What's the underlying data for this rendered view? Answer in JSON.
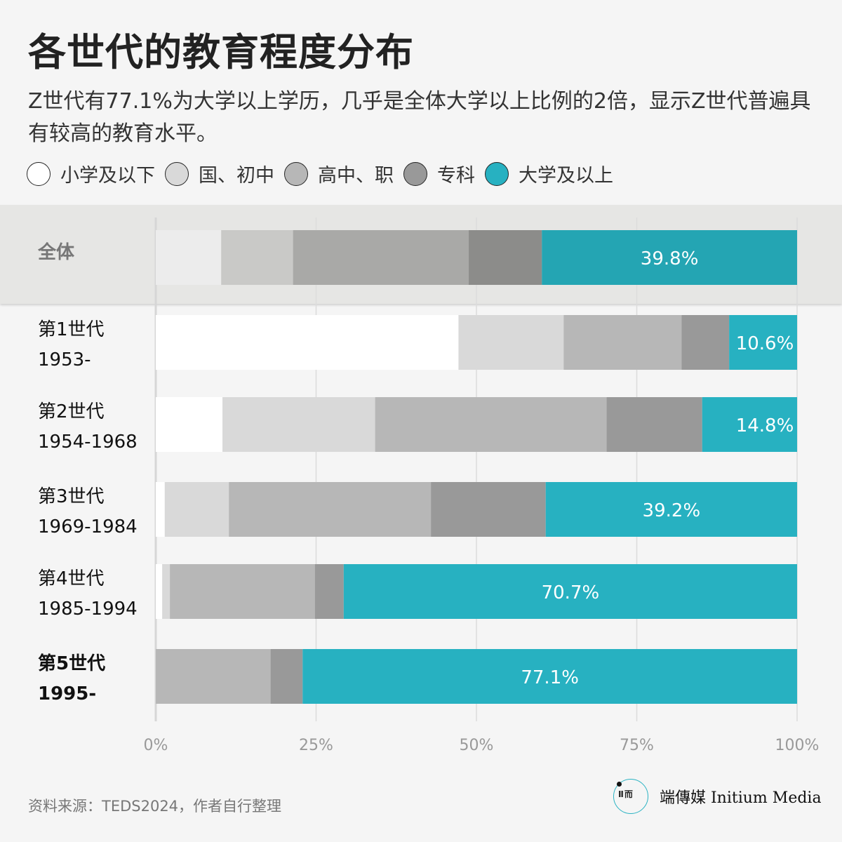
{
  "title": "各世代的教育程度分布",
  "subtitle": "Z世代有77.1%为大学以上学历，几乎是全体大学以上比例的2倍，显示Z世代普遍具有较高的教育水平。",
  "footer": "资料来源：TEDS2024，作者自行整理",
  "logo": {
    "name": "端傳媒 Initium Media",
    "mark": "Ⅱ 而"
  },
  "colors": {
    "levels": [
      "#ffffff",
      "#d9d9d9",
      "#b7b7b7",
      "#999999",
      "#27b1c1"
    ],
    "overall": [
      "#ececec",
      "#c9c9c7",
      "#a9a9a7",
      "#8c8c8a",
      "#24a5b3"
    ]
  },
  "chart_data": {
    "type": "bar",
    "orientation": "horizontal-stacked-100",
    "title": "各世代的教育程度分布",
    "legend": [
      "小学及以下",
      "国、初中",
      "高中、职",
      "专科",
      "大学及以上"
    ],
    "legend_placement": "top",
    "categories": [
      {
        "line1": "全体",
        "line2": ""
      },
      {
        "line1": "第1世代",
        "line2": "1953-"
      },
      {
        "line1": "第2世代",
        "line2": "1954-1968"
      },
      {
        "line1": "第3世代",
        "line2": "1969-1984"
      },
      {
        "line1": "第4世代",
        "line2": "1985-1994"
      },
      {
        "line1": "第5世代",
        "line2": "1995-"
      }
    ],
    "series": [
      {
        "name": "小学及以下",
        "values": [
          10.2,
          47.2,
          10.4,
          1.4,
          1.0,
          0
        ]
      },
      {
        "name": "国、初中",
        "values": [
          11.2,
          16.4,
          23.8,
          10.0,
          1.2,
          0
        ]
      },
      {
        "name": "高中、职",
        "values": [
          27.4,
          18.4,
          36.1,
          31.5,
          22.6,
          17.9
        ]
      },
      {
        "name": "专科",
        "values": [
          11.4,
          7.4,
          14.9,
          17.9,
          4.5,
          5.0
        ]
      },
      {
        "name": "大学及以上",
        "values": [
          39.8,
          10.6,
          14.8,
          39.2,
          70.7,
          77.1
        ]
      }
    ],
    "data_labels": [
      "39.8%",
      "10.6%",
      "14.8%",
      "39.2%",
      "70.7%",
      "77.1%"
    ],
    "xlim": [
      0,
      100
    ],
    "xticks": [
      "0%",
      "25%",
      "50%",
      "75%",
      "100%"
    ],
    "grid": true
  }
}
